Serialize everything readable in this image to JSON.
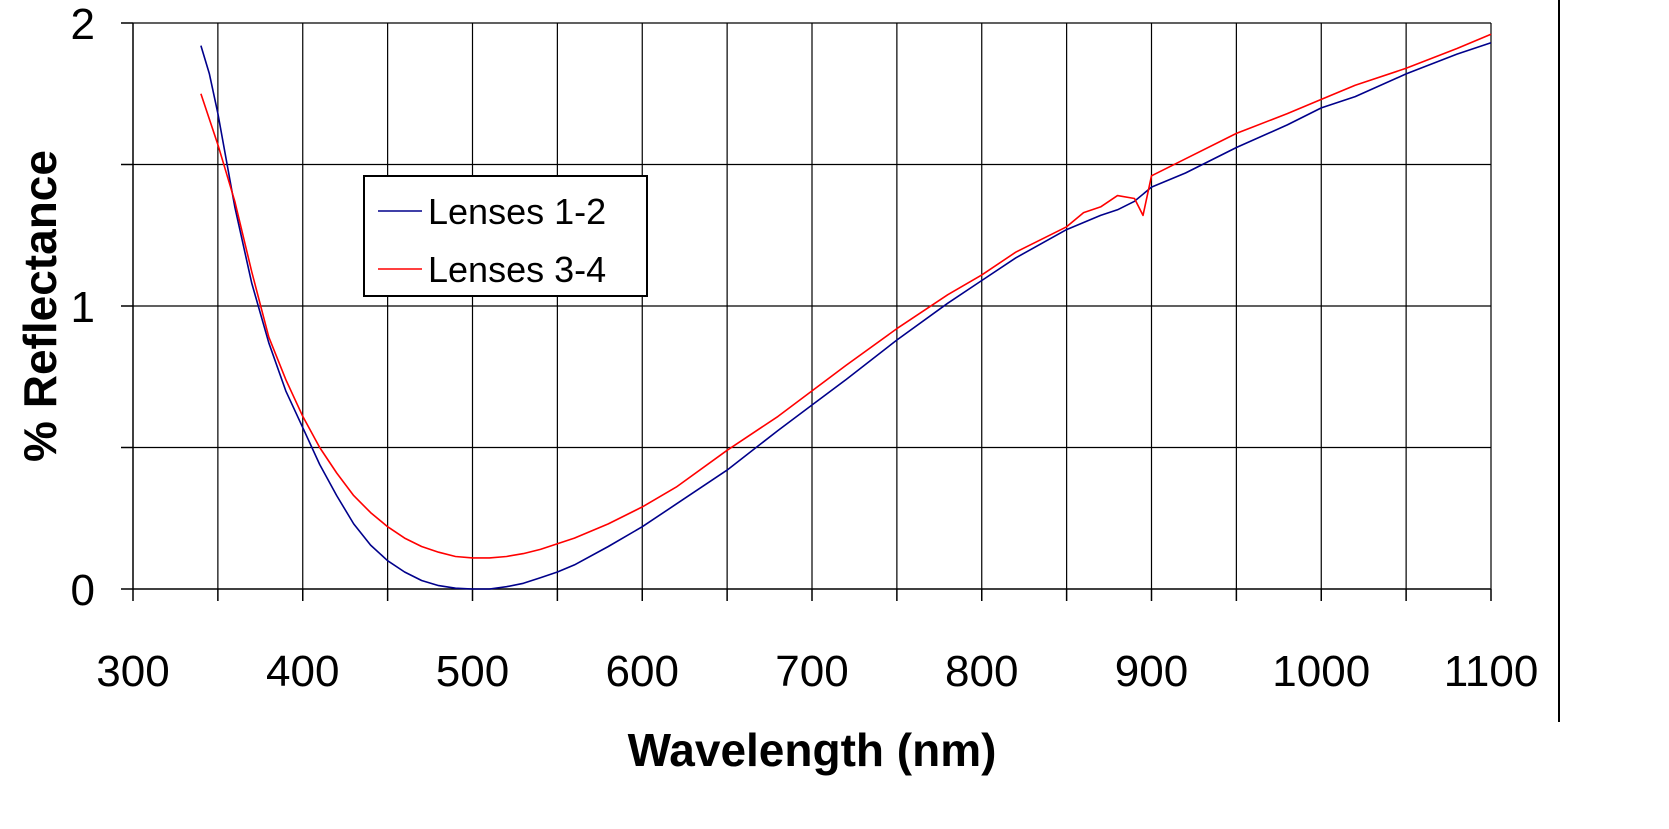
{
  "chart_data": {
    "type": "line",
    "xlabel": "Wavelength (nm)",
    "ylabel": "% Reflectance",
    "xlim": [
      300,
      1100
    ],
    "ylim": [
      0,
      2
    ],
    "x_ticks": [
      "300",
      "400",
      "500",
      "600",
      "700",
      "800",
      "900",
      "1000",
      "1100"
    ],
    "y_ticks": [
      "0",
      "1",
      "2"
    ],
    "grid": true,
    "legend_position": "upper-left",
    "series": [
      {
        "name": "Lenses 1-2",
        "color": "#00008b",
        "x": [
          340,
          345,
          350,
          360,
          370,
          380,
          390,
          400,
          410,
          420,
          430,
          440,
          450,
          460,
          470,
          480,
          490,
          500,
          510,
          520,
          530,
          540,
          550,
          560,
          580,
          600,
          620,
          650,
          680,
          700,
          720,
          750,
          780,
          800,
          820,
          850,
          870,
          880,
          890,
          900,
          920,
          950,
          980,
          1000,
          1020,
          1050,
          1080,
          1100
        ],
        "y": [
          1.92,
          1.82,
          1.68,
          1.35,
          1.08,
          0.87,
          0.7,
          0.57,
          0.44,
          0.33,
          0.23,
          0.155,
          0.1,
          0.06,
          0.03,
          0.012,
          0.003,
          0.0,
          0.0,
          0.008,
          0.02,
          0.04,
          0.06,
          0.085,
          0.15,
          0.22,
          0.3,
          0.42,
          0.56,
          0.65,
          0.74,
          0.88,
          1.01,
          1.09,
          1.17,
          1.27,
          1.32,
          1.34,
          1.37,
          1.42,
          1.47,
          1.56,
          1.64,
          1.7,
          1.74,
          1.82,
          1.89,
          1.93
        ]
      },
      {
        "name": "Lenses 3-4",
        "color": "#ff0000",
        "x": [
          340,
          350,
          360,
          370,
          380,
          390,
          400,
          410,
          420,
          430,
          440,
          450,
          460,
          470,
          480,
          490,
          500,
          510,
          520,
          530,
          540,
          550,
          560,
          580,
          600,
          620,
          650,
          680,
          700,
          720,
          750,
          780,
          800,
          820,
          850,
          860,
          870,
          880,
          890,
          895,
          900,
          920,
          950,
          980,
          1000,
          1020,
          1050,
          1080,
          1100
        ],
        "y": [
          1.75,
          1.57,
          1.37,
          1.12,
          0.89,
          0.74,
          0.61,
          0.5,
          0.41,
          0.33,
          0.27,
          0.22,
          0.18,
          0.15,
          0.13,
          0.115,
          0.11,
          0.11,
          0.115,
          0.125,
          0.14,
          0.16,
          0.18,
          0.23,
          0.29,
          0.36,
          0.49,
          0.61,
          0.7,
          0.79,
          0.92,
          1.04,
          1.11,
          1.19,
          1.28,
          1.33,
          1.35,
          1.39,
          1.38,
          1.32,
          1.46,
          1.52,
          1.61,
          1.68,
          1.73,
          1.78,
          1.84,
          1.91,
          1.96
        ]
      }
    ]
  }
}
